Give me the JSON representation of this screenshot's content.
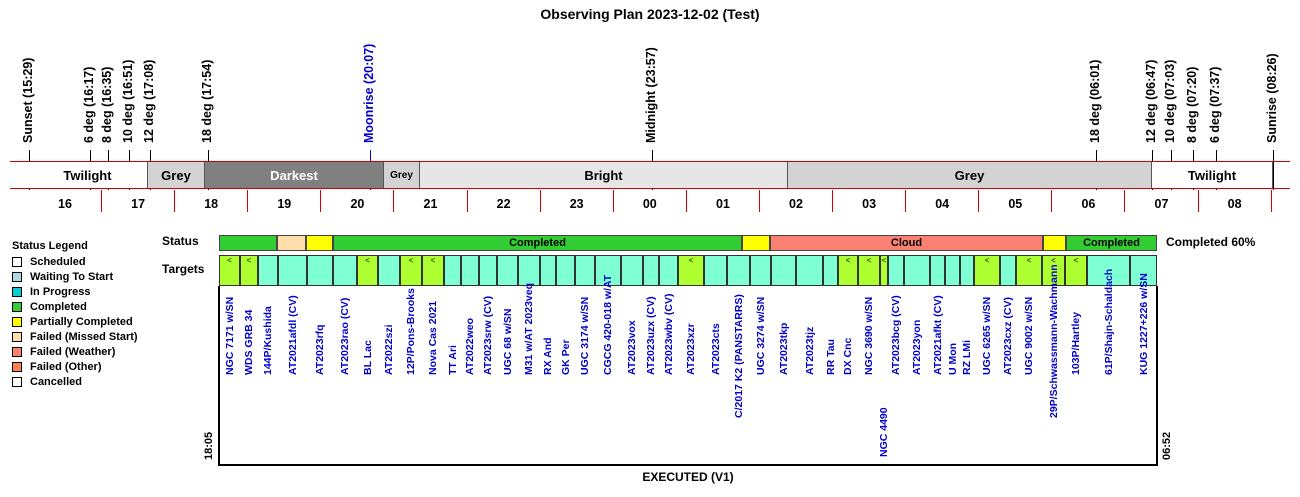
{
  "title": "Observing Plan 2023-12-02 (Test)",
  "events": [
    {
      "label": "Sunset (15:29)",
      "color": "#000000"
    },
    {
      "label": "6 deg (16:17)",
      "color": "#000000"
    },
    {
      "label": "8 deg (16:35)",
      "color": "#000000"
    },
    {
      "label": "10 deg (16:51)",
      "color": "#000000"
    },
    {
      "label": "12 deg (17:08)",
      "color": "#000000"
    },
    {
      "label": "18 deg (17:54)",
      "color": "#000000"
    },
    {
      "label": "Moonrise (20:07)",
      "color": "#0000cc"
    },
    {
      "label": "Midnight (23:57)",
      "color": "#000000"
    },
    {
      "label": "18 deg (06:01)",
      "color": "#000000"
    },
    {
      "label": "12 deg (06:47)",
      "color": "#000000"
    },
    {
      "label": "10 deg (07:03)",
      "color": "#000000"
    },
    {
      "label": "8 deg (07:20)",
      "color": "#000000"
    },
    {
      "label": "6 deg (07:37)",
      "color": "#000000"
    },
    {
      "label": "Sunrise (08:26)",
      "color": "#000000"
    }
  ],
  "bands": [
    {
      "label": "Twilight",
      "color": "#ffffff"
    },
    {
      "label": "Grey",
      "color": "#d3d3d3"
    },
    {
      "label": "Darkest",
      "color": "#808080",
      "text_color": "#ffffff"
    },
    {
      "label": "Grey",
      "color": "#d3d3d3"
    },
    {
      "label": "Bright",
      "color": "#e6e6e6"
    },
    {
      "label": "Grey",
      "color": "#d3d3d3"
    },
    {
      "label": "Twilight",
      "color": "#ffffff"
    }
  ],
  "hours": [
    "16",
    "17",
    "18",
    "19",
    "20",
    "21",
    "22",
    "23",
    "00",
    "01",
    "02",
    "03",
    "04",
    "05",
    "06",
    "07",
    "08"
  ],
  "legend": {
    "title": "Status Legend",
    "items": [
      {
        "label": "Scheduled",
        "color": "#ffffff"
      },
      {
        "label": "Waiting To Start",
        "color": "#add8e6"
      },
      {
        "label": "In Progress",
        "color": "#00ced1"
      },
      {
        "label": "Completed",
        "color": "#32cd32"
      },
      {
        "label": "Partially Completed",
        "color": "#ffff00"
      },
      {
        "label": "Failed (Missed Start)",
        "color": "#ffdead"
      },
      {
        "label": "Failed (Weather)",
        "color": "#fa8072"
      },
      {
        "label": "Failed (Other)",
        "color": "#ff7f50"
      },
      {
        "label": "Cancelled",
        "color": "#ffffff"
      }
    ]
  },
  "status_label": "Status",
  "targets_label": "Targets",
  "completion": "Completed 60%",
  "status_segments": [
    {
      "label": "",
      "color": "#32cd32"
    },
    {
      "label": "",
      "color": "#ffdead"
    },
    {
      "label": "",
      "color": "#ffff00"
    },
    {
      "label": "Completed",
      "color": "#32cd32"
    },
    {
      "label": "",
      "color": "#ffff00"
    },
    {
      "label": "Cloud",
      "color": "#fa8072"
    },
    {
      "label": "",
      "color": "#ffff00"
    },
    {
      "label": "Completed",
      "color": "#32cd32"
    }
  ],
  "targets": [
    {
      "name": "NGC 7171 w/SN",
      "mark": "<"
    },
    {
      "name": "WDS GRB 34",
      "mark": "<"
    },
    {
      "name": "144P/Kushida",
      "mark": ""
    },
    {
      "name": "AT2021afdl (CV)",
      "mark": ""
    },
    {
      "name": "AT2023rfq",
      "mark": ""
    },
    {
      "name": "AT2023rao (CV)",
      "mark": ""
    },
    {
      "name": "BL Lac",
      "mark": "<"
    },
    {
      "name": "AT2022szi",
      "mark": ""
    },
    {
      "name": "12P/Pons-Brooks",
      "mark": "<"
    },
    {
      "name": "Nova Cas 2021",
      "mark": "<"
    },
    {
      "name": "TT Ari",
      "mark": ""
    },
    {
      "name": "AT2022weo",
      "mark": ""
    },
    {
      "name": "AT2023srw (CV)",
      "mark": ""
    },
    {
      "name": "UGC 68 w/SN",
      "mark": ""
    },
    {
      "name": "M31 w/AT 2023veq",
      "mark": ""
    },
    {
      "name": "RX And",
      "mark": ""
    },
    {
      "name": "GK Per",
      "mark": ""
    },
    {
      "name": "UGC 3174 w/SN",
      "mark": ""
    },
    {
      "name": "CGCG 420-018 w/AT",
      "mark": ""
    },
    {
      "name": "AT2023vox",
      "mark": ""
    },
    {
      "name": "AT2023uzx (CV)",
      "mark": ""
    },
    {
      "name": "AT2023wbv (CV)",
      "mark": ""
    },
    {
      "name": "AT2023xzr",
      "mark": "<"
    },
    {
      "name": "AT2023cts",
      "mark": ""
    },
    {
      "name": "C/2017 K2 (PANSTARRS)",
      "mark": ""
    },
    {
      "name": "UGC 3274 w/SN",
      "mark": ""
    },
    {
      "name": "AT2023tkp",
      "mark": ""
    },
    {
      "name": "AT2023tjz",
      "mark": ""
    },
    {
      "name": "RR Tau",
      "mark": ""
    },
    {
      "name": "DX Cnc",
      "mark": "<"
    },
    {
      "name": "NGC 3690 w/SN",
      "mark": "<"
    },
    {
      "name": "NGC 4490",
      "mark": "<"
    },
    {
      "name": "AT2023bcg (CV)",
      "mark": ""
    },
    {
      "name": "AT2023yon",
      "mark": ""
    },
    {
      "name": "AT2021afkt (CV)",
      "mark": ""
    },
    {
      "name": "U Mon",
      "mark": ""
    },
    {
      "name": "RZ LMi",
      "mark": ""
    },
    {
      "name": "UGC 6265 w/SN",
      "mark": "<"
    },
    {
      "name": "AT2023cxz (CV)",
      "mark": ""
    },
    {
      "name": "UGC 9002 w/SN",
      "mark": "<"
    },
    {
      "name": "29P/Schwassmann-Wachmann",
      "mark": "<"
    },
    {
      "name": "103P/Hartley",
      "mark": "<"
    },
    {
      "name": "61P/Shajn-Schaldach",
      "mark": ""
    },
    {
      "name": "KUG 1227+226 w/SN",
      "mark": ""
    }
  ],
  "target_colors": {
    "aqua": "#7fffd4",
    "green": "#adff2f"
  },
  "start_time": "18:05",
  "end_time": "06:52",
  "footer": "EXECUTED (V1)"
}
